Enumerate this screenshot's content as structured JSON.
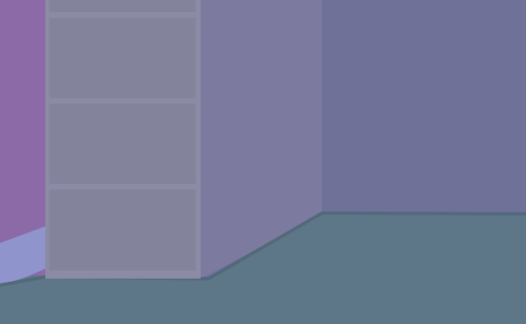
{
  "scene": {
    "colors": {
      "left_wall": "#8c6aa8",
      "baseboard_left": "#8f95cc",
      "back_wall": "#6f7199",
      "cabinet_side": "#7c7b9f",
      "cabinet_front": "#84839c",
      "cabinet_frame": "#8c8ba6",
      "floor": "#5d7788",
      "floor_edge": "#52697a"
    },
    "cabinet": {
      "shelf_count": 4
    }
  }
}
